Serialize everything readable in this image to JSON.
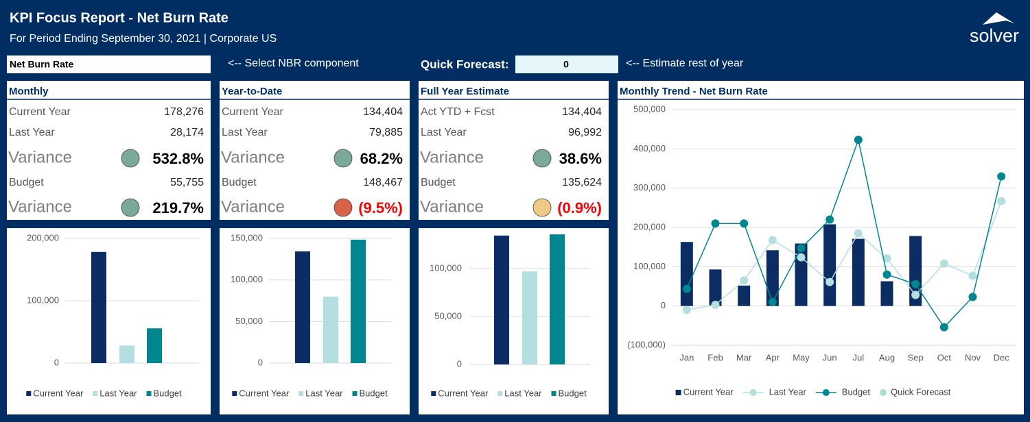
{
  "header": {
    "title": "KPI Focus Report - Net Burn Rate",
    "subtitle": "For Period Ending September 30, 2021 | Corporate US",
    "logo": "solver"
  },
  "controls": {
    "selector": "Net Burn Rate",
    "selector_hint": "<-- Select NBR component",
    "forecast_label": "Quick Forecast:",
    "forecast_value": "0",
    "forecast_hint": "<-- Estimate rest of year"
  },
  "panels": [
    {
      "title": "Monthly",
      "rows": [
        {
          "label": "Current Year",
          "value": "178,276"
        },
        {
          "label": "Last Year",
          "value": "28,174"
        },
        {
          "label": "Variance",
          "value": "532.8%",
          "indicator": "#7aa899",
          "value_color": "#000000"
        },
        {
          "label": "Budget",
          "value": "55,755"
        },
        {
          "label": "Variance",
          "value": "219.7%",
          "indicator": "#7aa899",
          "value_color": "#000000"
        }
      ]
    },
    {
      "title": "Year-to-Date",
      "rows": [
        {
          "label": "Current Year",
          "value": "134,404"
        },
        {
          "label": "Last Year",
          "value": "79,885"
        },
        {
          "label": "Variance",
          "value": "68.2%",
          "indicator": "#7aa899",
          "value_color": "#000000"
        },
        {
          "label": "Budget",
          "value": "148,467"
        },
        {
          "label": "Variance",
          "value": "(9.5%)",
          "indicator": "#d9634a",
          "value_color": "#ff0000"
        }
      ]
    },
    {
      "title": "Full Year Estimate",
      "rows": [
        {
          "label": "Act YTD + Fcst",
          "value": "134,404"
        },
        {
          "label": "Last Year",
          "value": "96,992"
        },
        {
          "label": "Variance",
          "value": "38.6%",
          "indicator": "#7aa899",
          "value_color": "#000000"
        },
        {
          "label": "Budget",
          "value": "135,624"
        },
        {
          "label": "Variance",
          "value": "(0.9%)",
          "indicator": "#efc986",
          "value_color": "#ff0000"
        }
      ]
    }
  ],
  "chart_data": [
    {
      "type": "bar",
      "categories": [
        "Current Year",
        "Last Year",
        "Budget"
      ],
      "values": [
        178276,
        28174,
        55755
      ],
      "colors": [
        "#0b2d63",
        "#b4dfe1",
        "#00868f"
      ],
      "ylim": [
        0,
        200000
      ],
      "yticks": [
        0,
        {
          "value": 100000,
          "label": "100,000"
        },
        {
          "value": 200000,
          "label": "200,000"
        }
      ],
      "grid": true
    },
    {
      "type": "bar",
      "categories": [
        "Current Year",
        "Last Year",
        "Budget"
      ],
      "values": [
        134404,
        79885,
        148467
      ],
      "colors": [
        "#0b2d63",
        "#b4dfe1",
        "#00868f"
      ],
      "ylim": [
        0,
        150000
      ],
      "yticks": [
        0,
        {
          "value": 50000,
          "label": "50,000"
        },
        {
          "value": 100000,
          "label": "100,000"
        },
        {
          "value": 150000,
          "label": "150,000"
        }
      ],
      "grid": true
    },
    {
      "type": "bar",
      "categories": [
        "Current Year",
        "Last Year",
        "Budget"
      ],
      "values": [
        134404,
        96992,
        135624
      ],
      "colors": [
        "#0b2d63",
        "#b4dfe1",
        "#00868f"
      ],
      "ylim": [
        0,
        140000
      ],
      "yticks": [
        0,
        {
          "value": 50000,
          "label": "50,000"
        },
        {
          "value": 100000,
          "label": "100,000"
        }
      ],
      "grid": true
    },
    {
      "type": "combo",
      "title": "Monthly Trend - Net Burn Rate",
      "categories": [
        "Jan",
        "Feb",
        "Mar",
        "Apr",
        "May",
        "Jun",
        "Jul",
        "Aug",
        "Sep",
        "Oct",
        "Nov",
        "Dec"
      ],
      "ylim": [
        -100000,
        500000
      ],
      "yticks": [
        {
          "value": -100000,
          "label": "(100,000)"
        },
        0,
        {
          "value": 100000,
          "label": "100,000"
        },
        {
          "value": 200000,
          "label": "200,000"
        },
        {
          "value": 300000,
          "label": "300,000"
        },
        {
          "value": 400000,
          "label": "400,000"
        },
        {
          "value": 500000,
          "label": "500,000"
        }
      ],
      "grid": true,
      "series": [
        {
          "name": "Current Year",
          "type": "bar",
          "color": "#0b2d63",
          "values": [
            163000,
            93000,
            52000,
            142000,
            159000,
            208000,
            171000,
            63000,
            178276,
            null,
            null,
            null
          ]
        },
        {
          "name": "Last Year",
          "type": "line",
          "color": "#b4dfe1",
          "values": [
            -10000,
            3000,
            65000,
            168000,
            124000,
            61000,
            185000,
            121000,
            28174,
            108000,
            77000,
            267000
          ]
        },
        {
          "name": "Budget",
          "type": "line",
          "color": "#00868f",
          "values": [
            44000,
            210000,
            210000,
            10000,
            147000,
            220000,
            423000,
            80000,
            55755,
            -54000,
            23000,
            330000
          ]
        },
        {
          "name": "Quick Forecast",
          "type": "marker",
          "color": "#a8e0d4",
          "values": [
            null,
            null,
            null,
            null,
            null,
            null,
            null,
            null,
            null,
            null,
            null,
            null
          ]
        }
      ]
    }
  ]
}
